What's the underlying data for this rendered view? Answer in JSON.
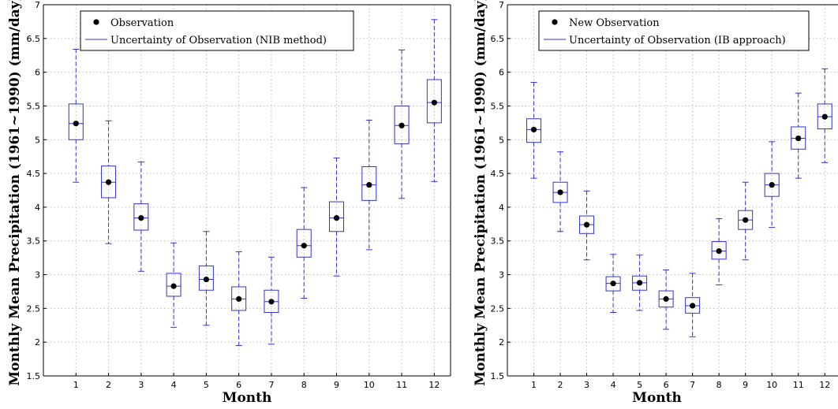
{
  "chart_data": [
    {
      "type": "boxplot",
      "xlabel": "Month",
      "ylabel": "Monthly Mean Precipitation (1961~1990) (mm/day)",
      "xticks": [
        "1",
        "2",
        "3",
        "4",
        "5",
        "6",
        "7",
        "8",
        "9",
        "10",
        "11",
        "12"
      ],
      "yticks": [
        "1.5",
        "2",
        "2.5",
        "3",
        "3.5",
        "4",
        "4.5",
        "5",
        "5.5",
        "6",
        "6.5",
        "7"
      ],
      "ylim": [
        1.5,
        7
      ],
      "grid": true,
      "legend_position": "top",
      "legend": {
        "point_label": "Observation",
        "range_label": "Uncertainty of Observation (NIB method)"
      },
      "series": {
        "months": [
          1,
          2,
          3,
          4,
          5,
          6,
          7,
          8,
          9,
          10,
          11,
          12
        ],
        "observation": [
          5.24,
          4.37,
          3.84,
          2.83,
          2.93,
          2.64,
          2.6,
          3.43,
          3.84,
          4.33,
          5.21,
          5.55
        ],
        "q1": [
          5.0,
          4.14,
          3.66,
          2.68,
          2.77,
          2.47,
          2.44,
          3.26,
          3.64,
          4.1,
          4.94,
          5.25
        ],
        "q3": [
          5.53,
          4.61,
          4.05,
          3.02,
          3.13,
          2.82,
          2.77,
          3.67,
          4.08,
          4.6,
          5.5,
          5.89
        ],
        "whisker_low": [
          4.37,
          3.46,
          3.05,
          2.22,
          2.25,
          1.95,
          1.97,
          2.65,
          2.98,
          3.37,
          4.13,
          4.38
        ],
        "whisker_high": [
          6.34,
          5.28,
          4.67,
          3.47,
          3.64,
          3.34,
          3.26,
          4.29,
          4.73,
          5.29,
          6.33,
          6.78
        ]
      }
    },
    {
      "type": "boxplot",
      "xlabel": "Month",
      "ylabel": "Monthly Mean Precipitation (1961~1990) (mm/day)",
      "xticks": [
        "1",
        "2",
        "3",
        "4",
        "5",
        "6",
        "7",
        "8",
        "9",
        "10",
        "11",
        "12"
      ],
      "yticks": [
        "1.5",
        "2",
        "2.5",
        "3",
        "3.5",
        "4",
        "4.5",
        "5",
        "5.5",
        "6",
        "6.5",
        "7"
      ],
      "ylim": [
        1.5,
        7
      ],
      "grid": true,
      "legend_position": "top",
      "legend": {
        "point_label": "New Observation",
        "range_label": "Uncertainty of Observation (IB approach)"
      },
      "series": {
        "months": [
          1,
          2,
          3,
          4,
          5,
          6,
          7,
          8,
          9,
          10,
          11,
          12
        ],
        "observation": [
          5.15,
          4.22,
          3.74,
          2.87,
          2.88,
          2.64,
          2.54,
          3.35,
          3.81,
          4.33,
          5.02,
          5.34
        ],
        "q1": [
          4.96,
          4.07,
          3.61,
          2.76,
          2.77,
          2.52,
          2.43,
          3.23,
          3.67,
          4.16,
          4.86,
          5.16
        ],
        "q3": [
          5.31,
          4.37,
          3.87,
          2.97,
          2.98,
          2.76,
          2.66,
          3.49,
          3.95,
          4.5,
          5.19,
          5.53
        ],
        "whisker_low": [
          4.43,
          3.64,
          3.22,
          2.44,
          2.47,
          2.19,
          2.08,
          2.85,
          3.22,
          3.7,
          4.43,
          4.66
        ],
        "whisker_high": [
          5.85,
          4.82,
          4.24,
          3.3,
          3.29,
          3.07,
          3.02,
          3.83,
          4.37,
          4.97,
          5.69,
          6.05
        ]
      }
    }
  ],
  "colors": {
    "box": "#3333cc",
    "point": "#000000",
    "grid": "#bdbdbd",
    "axis": "#000000"
  }
}
